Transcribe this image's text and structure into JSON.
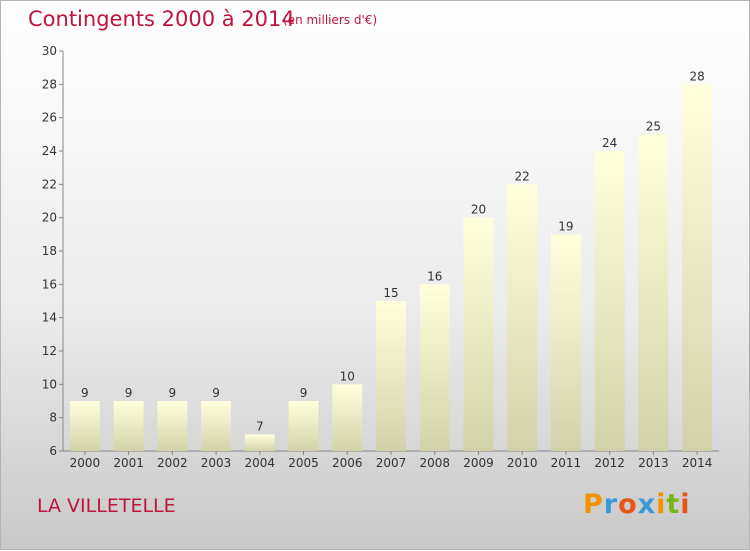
{
  "header": {
    "title": "Contingents 2000 à 2014",
    "subtitle": "(en milliers d'€)"
  },
  "footer": {
    "commune": "LA VILLETELLE",
    "logo": [
      "P",
      "r",
      "o",
      "x",
      "i",
      "t",
      "i"
    ],
    "logo_colors": [
      "#f39200",
      "#3a9ad9",
      "#e8541a",
      "#3a9ad9",
      "#f39200",
      "#7ab51d",
      "#e8541a"
    ]
  },
  "colors": {
    "title": "#c0143c",
    "bar_top": "#ffffdc",
    "bar_bottom": "#d2d2aa",
    "axis": "#888888"
  },
  "chart_data": {
    "type": "bar",
    "title": "Contingents 2000 à 2014",
    "subtitle": "(en milliers d'€)",
    "categories": [
      "2000",
      "2001",
      "2002",
      "2003",
      "2004",
      "2005",
      "2006",
      "2007",
      "2008",
      "2009",
      "2010",
      "2011",
      "2012",
      "2013",
      "2014"
    ],
    "values": [
      9,
      9,
      9,
      9,
      7,
      9,
      10,
      15,
      16,
      20,
      22,
      19,
      24,
      25,
      28
    ],
    "xlabel": "",
    "ylabel": "",
    "ylim": [
      6,
      30
    ],
    "yticks": [
      6,
      8,
      10,
      12,
      14,
      16,
      18,
      20,
      22,
      24,
      26,
      28,
      30
    ],
    "grid": false,
    "legend": "none"
  }
}
